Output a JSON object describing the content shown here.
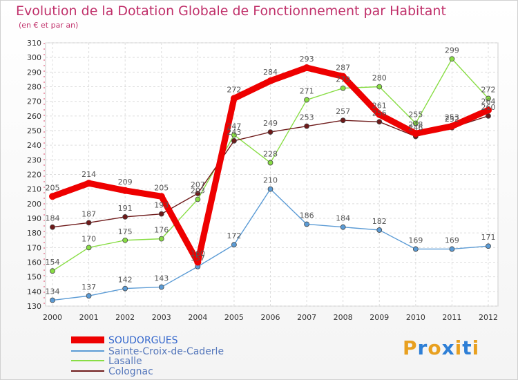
{
  "chart_data": {
    "type": "line",
    "title": "Evolution de la Dotation Globale de Fonctionnement par Habitant",
    "subtitle": "(en € et par an)",
    "xlabel": "",
    "ylabel": "",
    "ylim": [
      130,
      310
    ],
    "yticks": [
      130,
      140,
      150,
      160,
      170,
      180,
      190,
      200,
      210,
      220,
      230,
      240,
      250,
      260,
      270,
      280,
      290,
      300,
      310
    ],
    "categories": [
      "2000",
      "2001",
      "2002",
      "2003",
      "2004",
      "2005",
      "2006",
      "2007",
      "2008",
      "2009",
      "2010",
      "2011",
      "2012"
    ],
    "grid": true,
    "legend_position": "bottom-left",
    "series": [
      {
        "name": "SOUDORGUES",
        "color": "#ee0000",
        "values": [
          205,
          214,
          209,
          205,
          160,
          272,
          284,
          293,
          287,
          261,
          248,
          253,
          264
        ]
      },
      {
        "name": "Sainte-Croix-de-Caderle",
        "color": "#5b9bd5",
        "values": [
          134,
          137,
          142,
          143,
          157,
          172,
          210,
          186,
          184,
          182,
          169,
          169,
          171
        ]
      },
      {
        "name": "Lasalle",
        "color": "#88dd44",
        "values": [
          154,
          170,
          175,
          176,
          203,
          247,
          228,
          271,
          279,
          280,
          255,
          299,
          272
        ]
      },
      {
        "name": "Colognac",
        "color": "#6e1a1a",
        "values": [
          184,
          187,
          191,
          193,
          207,
          243,
          249,
          253,
          257,
          256,
          246,
          252,
          260
        ]
      }
    ]
  },
  "logo": {
    "letters": [
      "P",
      "r",
      "o",
      "x",
      "i",
      "t",
      "i"
    ],
    "colors": [
      "#e8a020",
      "#2e7fd6",
      "#e8a020",
      "#2e7fd6",
      "#e8a020",
      "#2e7fd6",
      "#e8a020"
    ]
  }
}
